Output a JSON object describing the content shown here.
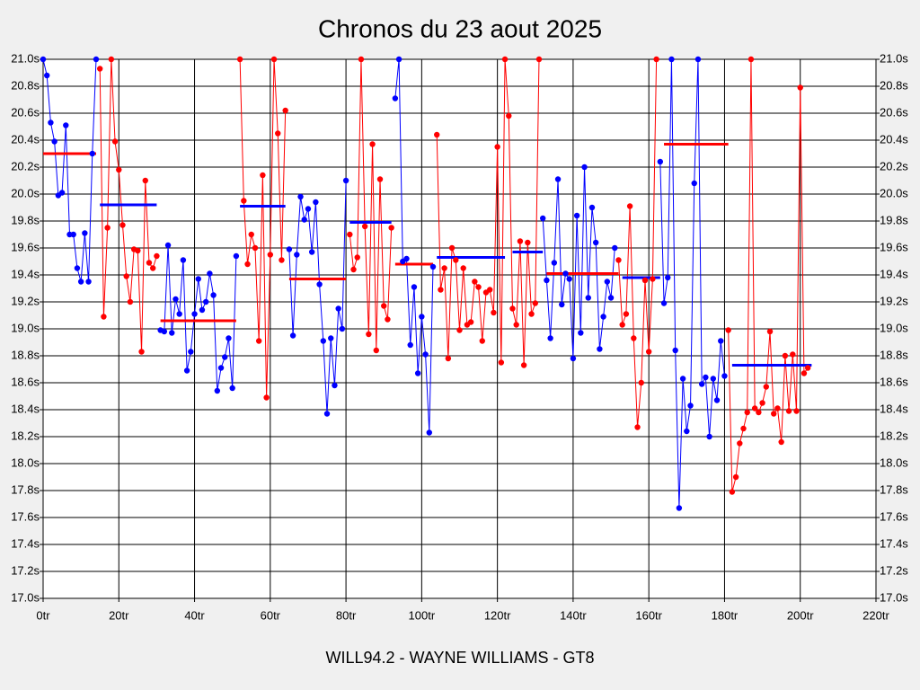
{
  "chart_data": {
    "type": "line",
    "title": "Chronos du 23 aout 2025",
    "x_label": "WILL94.2 - WAYNE WILLIAMS - GT8",
    "xlim": [
      0,
      220
    ],
    "xticks": [
      {
        "value": 0,
        "label": "0tr"
      },
      {
        "value": 20,
        "label": "20tr"
      },
      {
        "value": 40,
        "label": "40tr"
      },
      {
        "value": 60,
        "label": "60tr"
      },
      {
        "value": 80,
        "label": "80tr"
      },
      {
        "value": 100,
        "label": "100tr"
      },
      {
        "value": 120,
        "label": "120tr"
      },
      {
        "value": 140,
        "label": "140tr"
      },
      {
        "value": 160,
        "label": "160tr"
      },
      {
        "value": 180,
        "label": "180tr"
      },
      {
        "value": 200,
        "label": "200tr"
      },
      {
        "value": 220,
        "label": "220tr"
      }
    ],
    "ylim": [
      17.0,
      21.0
    ],
    "yticks": [
      {
        "value": 17.0,
        "label": "17.0s"
      },
      {
        "value": 17.2,
        "label": "17.2s"
      },
      {
        "value": 17.4,
        "label": "17.4s"
      },
      {
        "value": 17.6,
        "label": "17.6s"
      },
      {
        "value": 17.8,
        "label": "17.8s"
      },
      {
        "value": 18.0,
        "label": "18.0s"
      },
      {
        "value": 18.2,
        "label": "18.2s"
      },
      {
        "value": 18.4,
        "label": "18.4s"
      },
      {
        "value": 18.6,
        "label": "18.6s"
      },
      {
        "value": 18.8,
        "label": "18.8s"
      },
      {
        "value": 19.0,
        "label": "19.0s"
      },
      {
        "value": 19.2,
        "label": "19.2s"
      },
      {
        "value": 19.4,
        "label": "19.4s"
      },
      {
        "value": 19.6,
        "label": "19.6s"
      },
      {
        "value": 19.8,
        "label": "19.8s"
      },
      {
        "value": 20.0,
        "label": "20.0s"
      },
      {
        "value": 20.2,
        "label": "20.2s"
      },
      {
        "value": 20.4,
        "label": "20.4s"
      },
      {
        "value": 20.6,
        "label": "20.6s"
      },
      {
        "value": 20.8,
        "label": "20.8s"
      },
      {
        "value": 21.0,
        "label": "21.0s"
      }
    ],
    "grid": true,
    "series": [
      {
        "color": "#0000ff",
        "x": [
          0,
          1,
          2,
          3,
          4,
          5,
          6,
          7,
          8,
          9,
          10,
          11,
          12,
          13,
          14
        ],
        "values": [
          21.0,
          20.88,
          20.53,
          20.39,
          19.99,
          20.01,
          20.51,
          19.7,
          19.7,
          19.45,
          19.35,
          19.71,
          19.35,
          20.3,
          21.0
        ]
      },
      {
        "color": "#ff0000",
        "x": [
          15,
          16,
          17,
          18,
          19,
          20,
          21,
          22,
          23,
          24,
          25,
          26,
          27,
          28,
          29,
          30
        ],
        "values": [
          20.93,
          19.09,
          19.75,
          21.0,
          20.39,
          20.18,
          19.77,
          19.39,
          19.2,
          19.59,
          19.58,
          18.83,
          20.1,
          19.49,
          19.45,
          19.54
        ]
      },
      {
        "color": "#0000ff",
        "x": [
          31,
          32,
          33,
          34,
          35,
          36,
          37,
          38,
          39,
          40,
          41,
          42,
          43,
          44,
          45,
          46,
          47,
          48,
          49,
          50,
          51
        ],
        "values": [
          18.99,
          18.98,
          19.62,
          18.97,
          19.22,
          19.11,
          19.51,
          18.69,
          18.83,
          19.11,
          19.37,
          19.14,
          19.2,
          19.41,
          19.25,
          18.54,
          18.71,
          18.79,
          18.93,
          18.56,
          19.54
        ]
      },
      {
        "color": "#ff0000",
        "x": [
          52,
          53,
          54,
          55,
          56,
          57,
          58,
          59,
          60,
          61,
          62,
          63,
          64
        ],
        "values": [
          21.0,
          19.95,
          19.48,
          19.7,
          19.6,
          18.91,
          20.14,
          18.49,
          19.55,
          21.0,
          20.45,
          19.51,
          20.62
        ]
      },
      {
        "color": "#0000ff",
        "x": [
          65,
          66,
          67,
          68,
          69,
          70,
          71,
          72,
          73,
          74,
          75,
          76,
          77,
          78,
          79,
          80
        ],
        "values": [
          19.59,
          18.95,
          19.55,
          19.98,
          19.81,
          19.89,
          19.57,
          19.94,
          19.33,
          18.91,
          18.37,
          18.93,
          18.58,
          19.15,
          19.0,
          20.1
        ]
      },
      {
        "color": "#ff0000",
        "x": [
          81,
          82,
          83,
          84,
          85,
          86,
          87,
          88,
          89,
          90,
          91,
          92
        ],
        "values": [
          19.7,
          19.44,
          19.53,
          21.0,
          19.76,
          18.96,
          20.37,
          18.84,
          20.11,
          19.17,
          19.07,
          19.75
        ]
      },
      {
        "color": "#0000ff",
        "x": [
          93,
          94,
          95,
          96,
          97,
          98,
          99,
          100,
          101,
          102,
          103
        ],
        "values": [
          20.71,
          21.0,
          19.5,
          19.52,
          18.88,
          19.31,
          18.67,
          19.09,
          18.81,
          18.23,
          19.46
        ]
      },
      {
        "color": "#ff0000",
        "x": [
          104,
          105,
          106,
          107,
          108,
          109,
          110,
          111,
          112,
          113,
          114,
          115,
          116,
          117,
          118,
          119,
          120,
          121,
          122,
          123,
          124,
          125,
          126,
          127,
          128,
          129,
          130,
          131
        ],
        "values": [
          20.44,
          19.29,
          19.45,
          18.78,
          19.6,
          19.51,
          18.99,
          19.45,
          19.03,
          19.05,
          19.35,
          19.31,
          18.91,
          19.27,
          19.29,
          19.12,
          20.35,
          18.75,
          21.0,
          20.58,
          19.15,
          19.03,
          19.65,
          18.73,
          19.64,
          19.11,
          19.19,
          21.0
        ]
      },
      {
        "color": "#0000ff",
        "x": [
          132,
          133,
          134,
          135,
          136,
          137,
          138,
          139,
          140,
          141,
          142,
          143,
          144,
          145,
          146,
          147,
          148,
          149,
          150,
          151
        ],
        "values": [
          19.82,
          19.36,
          18.93,
          19.49,
          20.11,
          19.18,
          19.41,
          19.37,
          18.78,
          19.84,
          18.97,
          20.2,
          19.23,
          19.9,
          19.64,
          18.85,
          19.09,
          19.35,
          19.23,
          19.6
        ]
      },
      {
        "color": "#ff0000",
        "x": [
          152,
          153,
          154,
          155,
          156,
          157,
          158,
          159,
          160,
          161,
          162
        ],
        "values": [
          19.51,
          19.03,
          19.11,
          19.91,
          18.93,
          18.27,
          18.6,
          19.36,
          18.83,
          19.37,
          21.0
        ]
      },
      {
        "color": "#0000ff",
        "x": [
          163,
          164,
          165,
          166,
          167,
          168,
          169,
          170,
          171,
          172,
          173,
          174,
          175,
          176,
          177,
          178,
          179,
          180
        ],
        "values": [
          20.24,
          19.19,
          19.38,
          21.0,
          18.84,
          17.67,
          18.63,
          18.24,
          18.43,
          20.08,
          21.0,
          18.59,
          18.64,
          18.2,
          18.63,
          18.47,
          18.91,
          18.65
        ]
      },
      {
        "color": "#ff0000",
        "x": [
          181,
          182,
          183,
          184,
          185,
          186,
          187,
          188,
          189,
          190,
          191,
          192,
          193,
          194,
          195,
          196,
          197,
          198,
          199,
          200,
          201,
          202
        ],
        "values": [
          18.99,
          17.79,
          17.9,
          18.15,
          18.26,
          18.38,
          21.0,
          18.41,
          18.38,
          18.45,
          18.57,
          18.98,
          18.37,
          18.41,
          18.16,
          18.8,
          18.39,
          18.81,
          18.39,
          20.79,
          18.67,
          18.71
        ]
      }
    ],
    "averages": [
      {
        "from": 0,
        "to": 14,
        "value": 20.3,
        "color": "#ff0000"
      },
      {
        "from": 15,
        "to": 30,
        "value": 19.92,
        "color": "#0000ff"
      },
      {
        "from": 31,
        "to": 51,
        "value": 19.06,
        "color": "#ff0000"
      },
      {
        "from": 52,
        "to": 64,
        "value": 19.91,
        "color": "#0000ff"
      },
      {
        "from": 65,
        "to": 80,
        "value": 19.37,
        "color": "#ff0000"
      },
      {
        "from": 81,
        "to": 92,
        "value": 19.79,
        "color": "#0000ff"
      },
      {
        "from": 93,
        "to": 103,
        "value": 19.48,
        "color": "#ff0000"
      },
      {
        "from": 104,
        "to": 122,
        "value": 19.53,
        "color": "#0000ff"
      },
      {
        "from": 124,
        "to": 132,
        "value": 19.57,
        "color": "#0000ff"
      },
      {
        "from": 133,
        "to": 152,
        "value": 19.41,
        "color": "#ff0000"
      },
      {
        "from": 153,
        "to": 163,
        "value": 19.38,
        "color": "#0000ff"
      },
      {
        "from": 164,
        "to": 181,
        "value": 20.37,
        "color": "#ff0000"
      },
      {
        "from": 182,
        "to": 203,
        "value": 18.73,
        "color": "#0000ff"
      }
    ]
  }
}
